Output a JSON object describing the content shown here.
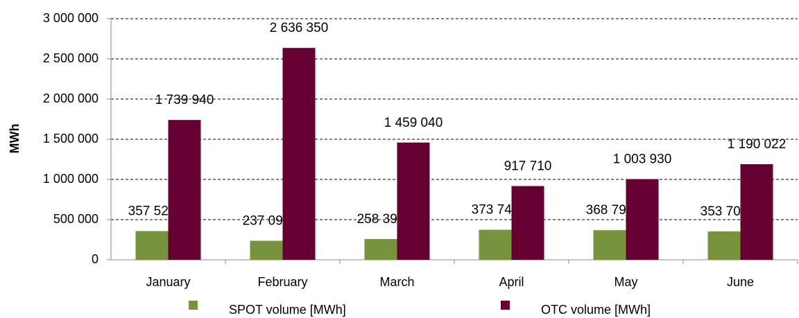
{
  "chart_data": {
    "type": "bar",
    "y_label": "MWh",
    "categories": [
      "January",
      "February",
      "March",
      "April",
      "May",
      "June"
    ],
    "series": [
      {
        "name": "SPOT volume [MWh]",
        "color": "#77933c",
        "values": [
          357521,
          237099,
          258395,
          373742,
          368799,
          353702
        ],
        "value_labels": [
          "357 521",
          "237 099",
          "258 395",
          "373 742",
          "368 799",
          "353 702"
        ]
      },
      {
        "name": "OTC volume [MWh]",
        "color": "#660033",
        "values": [
          1739940,
          2636350,
          1459040,
          917710,
          1003930,
          1190022
        ],
        "value_labels": [
          "1 739 940",
          "2 636 350",
          "1 459 040",
          "917 710",
          "1 003 930",
          "1 190 022"
        ]
      }
    ],
    "ylim": [
      0,
      3000000
    ],
    "yticks": [
      0,
      {
        "value": 500000,
        "label": "500 000"
      },
      {
        "value": 1000000,
        "label": "1 000 000"
      },
      {
        "value": 1500000,
        "label": "1 500 000"
      },
      {
        "value": 2000000,
        "label": "2 000 000"
      },
      {
        "value": 2500000,
        "label": "2 500 000"
      },
      {
        "value": 3000000,
        "label": "3 000 000"
      }
    ],
    "grid": true
  }
}
